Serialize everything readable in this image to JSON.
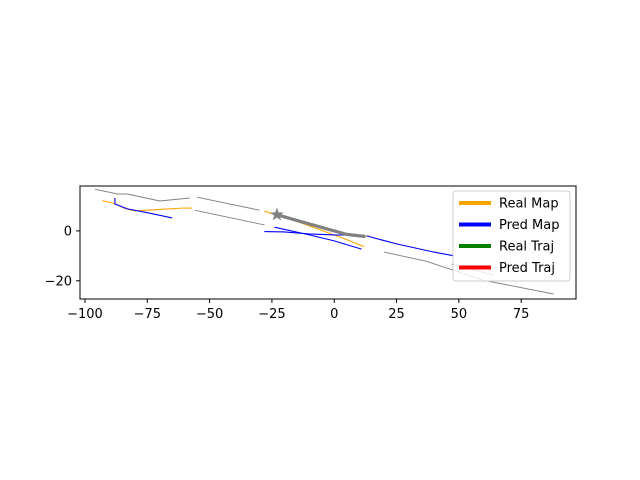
{
  "chart_data": {
    "type": "line",
    "title": "",
    "xlabel": "",
    "ylabel": "",
    "xlim": [
      -102,
      97
    ],
    "ylim": [
      -27.3,
      18.0
    ],
    "xticks": [
      -100,
      -75,
      -50,
      -25,
      0,
      25,
      50,
      75
    ],
    "xtick_labels": [
      "−100",
      "−75",
      "−50",
      "−25",
      "0",
      "25",
      "50",
      "75"
    ],
    "yticks": [
      0,
      -20
    ],
    "ytick_labels": [
      "0",
      "−20"
    ],
    "grid": false,
    "legend_position": "top-right",
    "legend": [
      {
        "label": "Real Map",
        "color": "#ffa500"
      },
      {
        "label": "Pred Map",
        "color": "#0000ff"
      },
      {
        "label": "Real Traj",
        "color": "#008000"
      },
      {
        "label": "Pred Traj",
        "color": "#ff0000"
      }
    ],
    "series": [
      {
        "name": "Real Map",
        "color": "#ffa500",
        "segments": [
          [
            [
              -93,
              12.1
            ],
            [
              -88,
              11.0
            ],
            [
              -84,
              9.0
            ],
            [
              -80,
              8.0
            ],
            [
              -70,
              8.6
            ],
            [
              -60,
              9.2
            ],
            [
              -57,
              9.1
            ]
          ],
          [
            [
              -28,
              7.9
            ],
            [
              -22,
              6.0
            ],
            [
              -15,
              3.8
            ],
            [
              -5,
              0.2
            ],
            [
              5,
              -3.5
            ],
            [
              12,
              -6.3
            ]
          ],
          [
            [
              12,
              -2.0
            ],
            [
              14,
              -2.1
            ]
          ]
        ]
      },
      {
        "name": "Pred Map",
        "color": "#0000ff",
        "segments": [
          [
            [
              -88,
              13.2
            ],
            [
              -88,
              10.8
            ],
            [
              -83,
              8.8
            ],
            [
              -75,
              7.3
            ],
            [
              -65,
              5.2
            ]
          ],
          [
            [
              -28,
              -0.3
            ],
            [
              -20,
              -0.4
            ],
            [
              -10,
              -1.2
            ],
            [
              0,
              -1.6
            ],
            [
              12,
              -1.7
            ]
          ],
          [
            [
              -24,
              1.5
            ],
            [
              -10,
              -1.6
            ],
            [
              0,
              -4.0
            ],
            [
              11,
              -7.3
            ]
          ],
          [
            [
              13,
              -2.0
            ],
            [
              25,
              -5.2
            ],
            [
              40,
              -8.5
            ],
            [
              48,
              -10.0
            ]
          ]
        ]
      },
      {
        "name": "Real Traj",
        "color": "#008000",
        "segments": []
      },
      {
        "name": "Pred Traj",
        "color": "#ff0000",
        "segments": []
      }
    ],
    "context_lines": {
      "color": "#808080",
      "segments": [
        [
          [
            -96,
            16.7
          ],
          [
            -87,
            14.8
          ],
          [
            -83,
            14.8
          ],
          [
            -70,
            12.0
          ],
          [
            -58,
            13.2
          ]
        ],
        [
          [
            -55,
            13.5
          ],
          [
            -30,
            8.3
          ]
        ],
        [
          [
            -56,
            8.3
          ],
          [
            -28,
            2.4
          ]
        ],
        [
          [
            20,
            -8.5
          ],
          [
            37,
            -12.2
          ],
          [
            60,
            -19.8
          ],
          [
            88,
            -25.3
          ]
        ],
        [
          [
            47,
            -13.3
          ],
          [
            64,
            -17.7
          ]
        ]
      ]
    },
    "ego_trajectory": {
      "color": "#808080",
      "points": [
        [
          -23,
          6.5
        ],
        [
          -15,
          4.2
        ],
        [
          -5,
          1.4
        ],
        [
          5,
          -1.4
        ],
        [
          12,
          -2.2
        ]
      ],
      "start_marker": "star",
      "start_point": [
        -23,
        6.5
      ]
    }
  }
}
